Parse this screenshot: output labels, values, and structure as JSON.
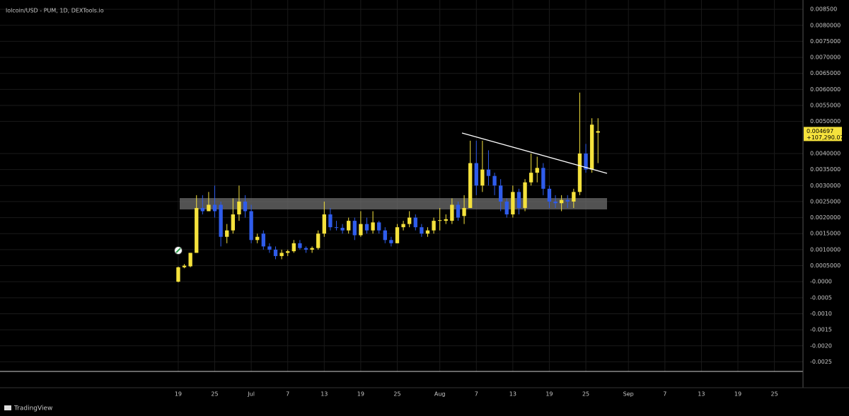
{
  "chart_data": {
    "type": "candlestick",
    "title": "lolcoin/USD - PUM, 1D, DEXTools.io",
    "brand": "TradingView",
    "up_color": "#f5e23c",
    "down_color": "#2f5ceb",
    "open": [
      0.0,
      0.00045,
      0.00048,
      0.0009,
      0.0023,
      0.0022,
      0.0024,
      0.0024,
      0.0014,
      0.0016,
      0.0021,
      0.0025,
      0.0022,
      0.0013,
      0.0015,
      0.0011,
      0.001,
      0.0008,
      0.0009,
      0.00095,
      0.0012,
      0.00105,
      0.001,
      0.00105,
      0.0015,
      0.0021,
      0.0017,
      0.00168,
      0.0016,
      0.0019,
      0.00145,
      0.0018,
      0.0016,
      0.00185,
      0.0016,
      0.0013,
      0.0012,
      0.0017,
      0.0018,
      0.002,
      0.0017,
      0.0015,
      0.0016,
      0.0019,
      0.0019,
      0.0019,
      0.0024,
      0.00205,
      0.0023,
      0.0037,
      0.003,
      0.0035,
      0.0033,
      0.003,
      0.0025,
      0.0021,
      0.0028,
      0.0023,
      0.0031,
      0.0034,
      0.00355,
      0.0029,
      0.0025,
      0.00245,
      0.00255,
      0.0025,
      0.0028,
      0.004,
      0.0035,
      0.00465
    ],
    "high": [
      0.00047,
      0.00055,
      0.0009,
      0.0027,
      0.0027,
      0.0028,
      0.003,
      0.0025,
      0.0018,
      0.0026,
      0.003,
      0.0027,
      0.0024,
      0.0015,
      0.0016,
      0.0012,
      0.0011,
      0.001,
      0.001,
      0.0013,
      0.0013,
      0.0011,
      0.0011,
      0.0016,
      0.0025,
      0.0023,
      0.0019,
      0.0018,
      0.002,
      0.002,
      0.0022,
      0.002,
      0.0022,
      0.0019,
      0.0017,
      0.0014,
      0.0018,
      0.0019,
      0.0022,
      0.0021,
      0.0018,
      0.0017,
      0.002,
      0.0023,
      0.0021,
      0.0026,
      0.0025,
      0.0027,
      0.0044,
      0.0044,
      0.0044,
      0.0041,
      0.0034,
      0.0032,
      0.0026,
      0.003,
      0.0029,
      0.0032,
      0.004,
      0.0039,
      0.0037,
      0.003,
      0.0027,
      0.0027,
      0.0027,
      0.0029,
      0.0059,
      0.0043,
      0.0051,
      0.0051
    ],
    "low": [
      -2e-05,
      0.00042,
      0.00045,
      0.0009,
      0.0021,
      0.0022,
      0.002,
      0.0011,
      0.0012,
      0.0015,
      0.0019,
      0.002,
      0.0012,
      0.0012,
      0.001,
      0.0009,
      0.0007,
      0.0007,
      0.0008,
      0.0009,
      0.001,
      0.0009,
      0.0009,
      0.001,
      0.0014,
      0.0016,
      0.0016,
      0.0015,
      0.0015,
      0.0013,
      0.0014,
      0.0015,
      0.0015,
      0.0015,
      0.0012,
      0.0011,
      0.0012,
      0.0016,
      0.0017,
      0.0016,
      0.0014,
      0.0014,
      0.0015,
      0.0016,
      0.0018,
      0.0018,
      0.0019,
      0.0018,
      0.0023,
      0.0027,
      0.0028,
      0.003,
      0.0027,
      0.0022,
      0.002,
      0.002,
      0.0021,
      0.0022,
      0.003,
      0.0031,
      0.0027,
      0.0023,
      0.0023,
      0.0022,
      0.0023,
      0.0023,
      0.0027,
      0.0034,
      0.0034,
      0.0037
    ],
    "close": [
      0.00045,
      0.0005,
      0.0009,
      0.0023,
      0.0022,
      0.0024,
      0.0022,
      0.0014,
      0.0016,
      0.0021,
      0.0025,
      0.0022,
      0.0013,
      0.0014,
      0.0011,
      0.001,
      0.0008,
      0.0009,
      0.00095,
      0.0012,
      0.00105,
      0.001,
      0.00105,
      0.0015,
      0.0021,
      0.0017,
      0.00168,
      0.0016,
      0.0019,
      0.00145,
      0.0018,
      0.0016,
      0.00185,
      0.0016,
      0.0013,
      0.0012,
      0.0017,
      0.0018,
      0.002,
      0.0017,
      0.0015,
      0.0016,
      0.0019,
      0.00192,
      0.00195,
      0.0024,
      0.002,
      0.0023,
      0.0037,
      0.003,
      0.0035,
      0.0033,
      0.003,
      0.0025,
      0.0021,
      0.0028,
      0.0023,
      0.0031,
      0.0034,
      0.00355,
      0.0029,
      0.0025,
      0.00245,
      0.00255,
      0.0025,
      0.0028,
      0.004,
      0.0035,
      0.0049,
      0.004697
    ],
    "last_price_label": "0.004697",
    "change_label": "+107,290.07%",
    "xlim": [
      -29.3,
      102.7
    ],
    "xticks": [
      {
        "value": 0,
        "label": "19"
      },
      {
        "value": 6,
        "label": "25"
      },
      {
        "value": 12,
        "label": "Jul"
      },
      {
        "value": 18,
        "label": "7"
      },
      {
        "value": 24,
        "label": "13"
      },
      {
        "value": 30,
        "label": "19"
      },
      {
        "value": 36,
        "label": "25"
      },
      {
        "value": 43,
        "label": "Aug"
      },
      {
        "value": 49,
        "label": "7"
      },
      {
        "value": 55,
        "label": "13"
      },
      {
        "value": 61,
        "label": "19"
      },
      {
        "value": 67,
        "label": "25"
      },
      {
        "value": 74,
        "label": "Sep"
      },
      {
        "value": 80,
        "label": "7"
      },
      {
        "value": 86,
        "label": "13"
      },
      {
        "value": 92,
        "label": "19"
      },
      {
        "value": 98,
        "label": "25"
      }
    ],
    "ylim": [
      -0.0028,
      0.00879
    ],
    "yticks": [
      {
        "value": 0.0085,
        "label": "0.008500"
      },
      {
        "value": 0.008,
        "label": "0.0080000"
      },
      {
        "value": 0.0075,
        "label": "0.0075000"
      },
      {
        "value": 0.007,
        "label": "0.0070000"
      },
      {
        "value": 0.0065,
        "label": "0.0065000"
      },
      {
        "value": 0.006,
        "label": "0.0060000"
      },
      {
        "value": 0.0055,
        "label": "0.0055000"
      },
      {
        "value": 0.005,
        "label": "0.0050000"
      },
      {
        "value": 0.004,
        "label": "0.0040000"
      },
      {
        "value": 0.0035,
        "label": "0.0035000"
      },
      {
        "value": 0.003,
        "label": "0.0030000"
      },
      {
        "value": 0.0025,
        "label": "0.0025000"
      },
      {
        "value": 0.002,
        "label": "0.0020000"
      },
      {
        "value": 0.0015,
        "label": "0.0015000"
      },
      {
        "value": 0.001,
        "label": "0.0010000"
      },
      {
        "value": 0.0005,
        "label": "0.0005000"
      },
      {
        "value": 0,
        "label": "-0.0000"
      },
      {
        "value": -0.0005,
        "label": "-0.0005"
      },
      {
        "value": -0.001,
        "label": "-0.0010"
      },
      {
        "value": -0.0015,
        "label": "-0.0015"
      },
      {
        "value": -0.002,
        "label": "-0.0020"
      },
      {
        "value": -0.0025,
        "label": "-0.0025"
      }
    ],
    "grid": true
  }
}
